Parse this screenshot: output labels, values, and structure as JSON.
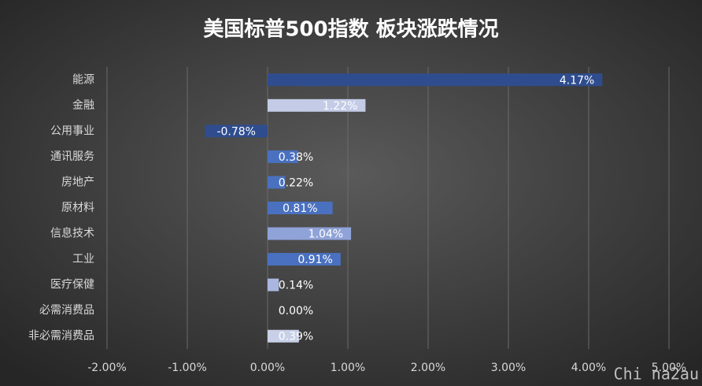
{
  "chart_data": {
    "type": "barh",
    "title": "美国标普500指数 板块涨跌情况",
    "categories": [
      "能源",
      "金融",
      "公用事业",
      "通讯服务",
      "房地产",
      "原材料",
      "信息技术",
      "工业",
      "医疗保健",
      "必需消费品",
      "非必需消费品"
    ],
    "values": [
      4.17,
      1.22,
      -0.78,
      0.38,
      0.22,
      0.81,
      1.04,
      0.91,
      0.14,
      0.0,
      0.39
    ],
    "value_labels": [
      "4.17%",
      "1.22%",
      "-0.78%",
      "0.38%",
      "0.22%",
      "0.81%",
      "1.04%",
      "0.91%",
      "0.14%",
      "0.00%",
      "0.39%"
    ],
    "colors": [
      "#2f4d8e",
      "#c3cbe6",
      "#2f4d8e",
      "#4a71c0",
      "#4a71c0",
      "#4a71c0",
      "#8fa3d8",
      "#4a71c0",
      "#a9b7e0",
      "#4a71c0",
      "#c8d0e8"
    ],
    "xlim": [
      -2,
      5
    ],
    "xticks": [
      {
        "value": -2,
        "label": "-2.00%"
      },
      {
        "value": -1,
        "label": "-1.00%"
      },
      {
        "value": 0,
        "label": "0.00%"
      },
      {
        "value": 1,
        "label": "1.00%"
      },
      {
        "value": 2,
        "label": "2.00%"
      },
      {
        "value": 3,
        "label": "3.00%"
      },
      {
        "value": 4,
        "label": "4.00%"
      },
      {
        "value": 5,
        "label": "5.00%"
      }
    ],
    "grid": true,
    "watermark": "Chi na2au"
  }
}
